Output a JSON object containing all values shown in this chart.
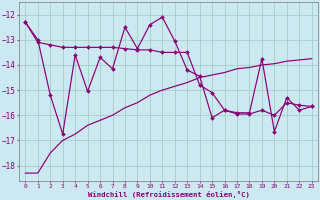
{
  "xlabel": "Windchill (Refroidissement éolien,°C)",
  "bg_color": "#cce8f0",
  "grid_color": "#99ccbb",
  "line_color": "#880077",
  "xlim": [
    -0.5,
    23.5
  ],
  "ylim": [
    -18.6,
    -11.5
  ],
  "yticks": [
    -18,
    -17,
    -16,
    -15,
    -14,
    -13,
    -12
  ],
  "xticks": [
    0,
    1,
    2,
    3,
    4,
    5,
    6,
    7,
    8,
    9,
    10,
    11,
    12,
    13,
    14,
    15,
    16,
    17,
    18,
    19,
    20,
    21,
    22,
    23
  ],
  "series1_y": [
    -12.3,
    -13.1,
    -13.2,
    -13.3,
    -13.3,
    -13.3,
    -13.3,
    -13.3,
    -13.35,
    -13.4,
    -13.4,
    -13.5,
    -13.5,
    -13.5,
    -14.8,
    -15.1,
    -15.8,
    -15.95,
    -15.95,
    -15.8,
    -16.0,
    -15.5,
    -15.6,
    -15.65
  ],
  "series2_y": [
    -18.3,
    -18.3,
    -17.5,
    -17.0,
    -16.75,
    -16.4,
    -16.2,
    -16.0,
    -15.7,
    -15.5,
    -15.2,
    -15.0,
    -14.85,
    -14.7,
    -14.5,
    -14.4,
    -14.3,
    -14.15,
    -14.1,
    -14.0,
    -13.95,
    -13.85,
    -13.8,
    -13.75
  ],
  "series3_y": [
    -12.3,
    -13.0,
    -15.2,
    -16.75,
    -13.6,
    -15.05,
    -13.7,
    -14.15,
    -12.5,
    -13.35,
    -12.4,
    -12.1,
    -13.05,
    -14.2,
    -14.45,
    -16.1,
    -15.8,
    -15.9,
    -15.9,
    -13.75,
    -16.65,
    -15.3,
    -15.8,
    -15.65
  ]
}
